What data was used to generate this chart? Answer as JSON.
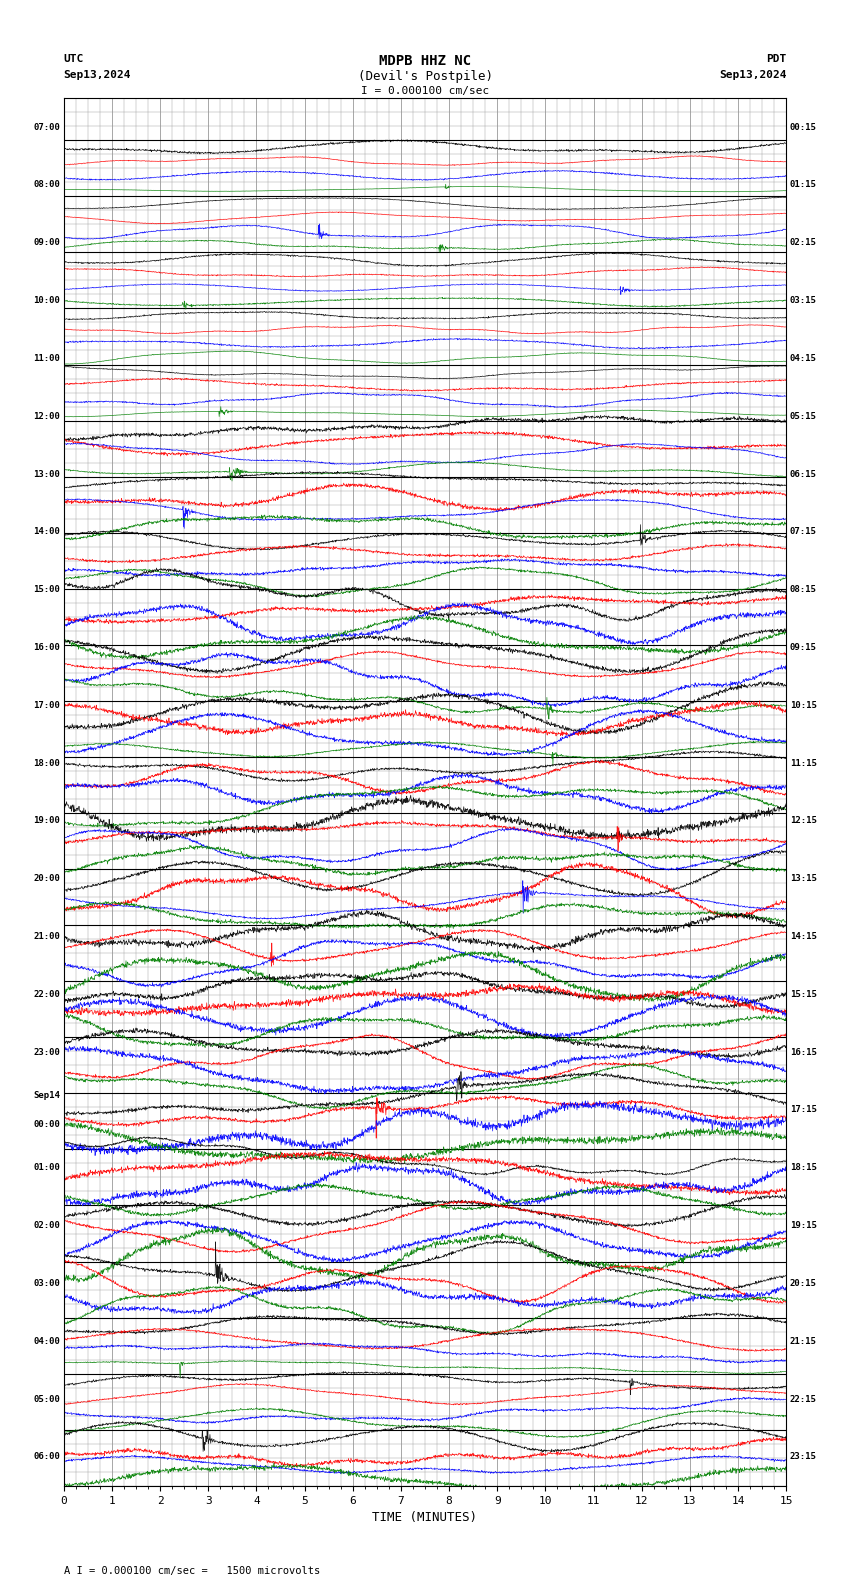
{
  "title_center": "MDPB HHZ NC",
  "title_sub": "(Devil's Postpile)",
  "scale_text": "I = 0.000100 cm/sec",
  "label_left_top": "UTC",
  "label_left_date": "Sep13,2024",
  "label_right_top": "PDT",
  "label_right_date": "Sep13,2024",
  "footer_text": "A I = 0.000100 cm/sec =   1500 microvolts",
  "xlabel": "TIME (MINUTES)",
  "left_times": [
    "07:00",
    "08:00",
    "09:00",
    "10:00",
    "11:00",
    "12:00",
    "13:00",
    "14:00",
    "15:00",
    "16:00",
    "17:00",
    "18:00",
    "19:00",
    "20:00",
    "21:00",
    "22:00",
    "23:00",
    "Sep14\n00:00",
    "01:00",
    "02:00",
    "03:00",
    "04:00",
    "05:00",
    "06:00"
  ],
  "right_times": [
    "00:15",
    "01:15",
    "02:15",
    "03:15",
    "04:15",
    "05:15",
    "06:15",
    "07:15",
    "08:15",
    "09:15",
    "10:15",
    "11:15",
    "12:15",
    "13:15",
    "14:15",
    "15:15",
    "16:15",
    "17:15",
    "18:15",
    "19:15",
    "20:15",
    "21:15",
    "22:15",
    "23:15"
  ],
  "n_rows": 24,
  "n_minutes": 15,
  "colors": [
    "black",
    "red",
    "blue",
    "green"
  ],
  "bg_color": "white",
  "grid_color": "#999999",
  "fig_width": 8.5,
  "fig_height": 15.84
}
